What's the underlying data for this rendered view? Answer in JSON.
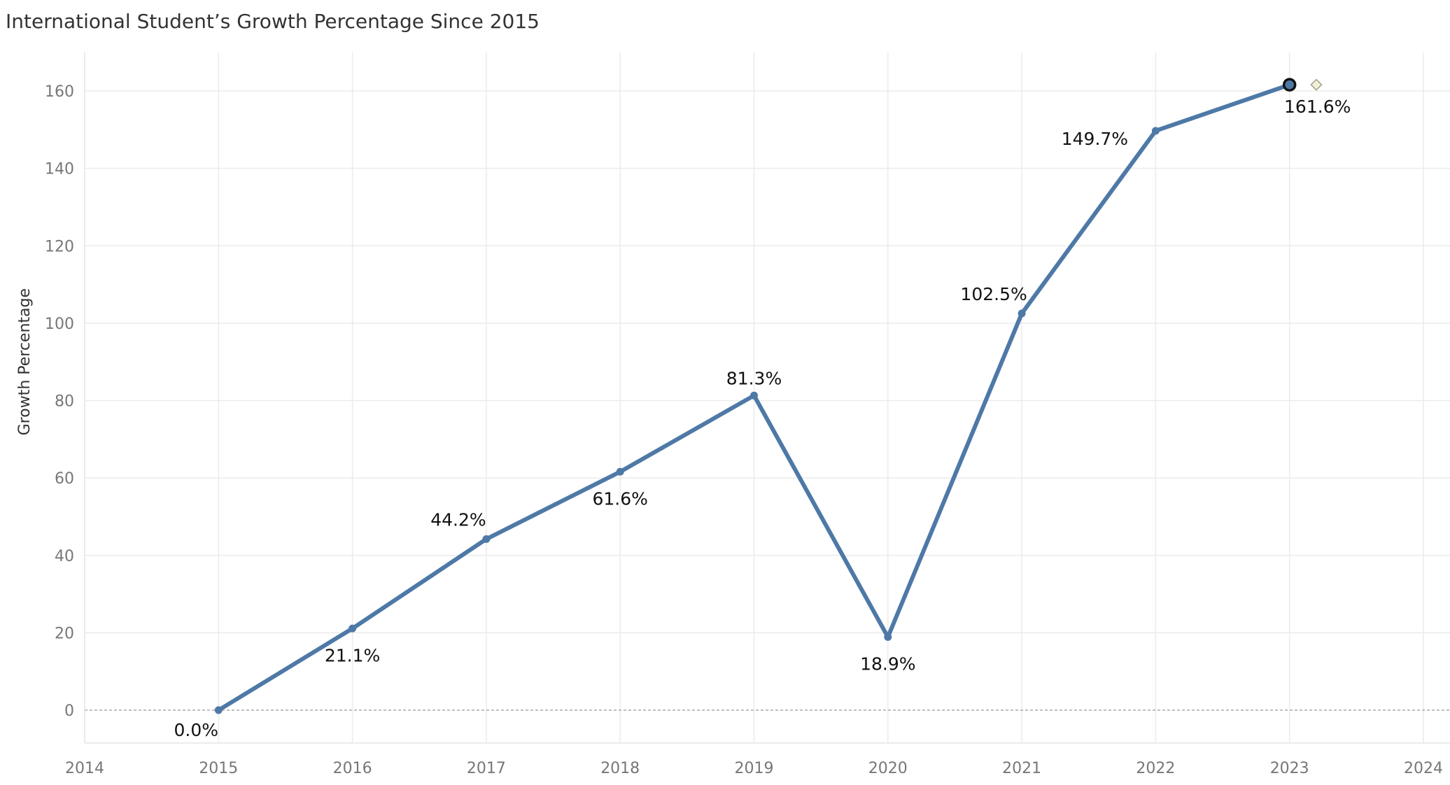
{
  "chart_data": {
    "type": "line",
    "title": "International Student’s Growth Percentage Since 2015",
    "xlabel": "",
    "ylabel": "Growth Percentage",
    "xlim": [
      2014,
      2024
    ],
    "ylim": [
      -8,
      170
    ],
    "x_ticks": [
      2014,
      2015,
      2016,
      2017,
      2018,
      2019,
      2020,
      2021,
      2022,
      2023,
      2024
    ],
    "y_ticks": [
      0,
      20,
      40,
      60,
      80,
      100,
      120,
      140,
      160
    ],
    "grid": true,
    "zero_line": "dashed",
    "series": [
      {
        "color": "#4e79a7",
        "x": [
          2015,
          2016,
          2017,
          2018,
          2019,
          2020,
          2021,
          2022,
          2023
        ],
        "values": [
          0.0,
          21.1,
          44.2,
          61.6,
          81.3,
          18.9,
          102.5,
          149.7,
          161.6
        ],
        "labels": [
          "0.0%",
          "21.1%",
          "44.2%",
          "61.6%",
          "81.3%",
          "18.9%",
          "102.5%",
          "149.7%",
          "161.6%"
        ],
        "label_positions": [
          "below-left",
          "below",
          "above-left",
          "below",
          "above",
          "below",
          "above-left",
          "left",
          "below"
        ]
      }
    ],
    "highlight": {
      "x": 2023,
      "marker": "circle"
    },
    "forecast_marker": {
      "x": 2023.2,
      "y": 161.6,
      "shape": "diamond",
      "color": "#d9d3a8"
    }
  }
}
